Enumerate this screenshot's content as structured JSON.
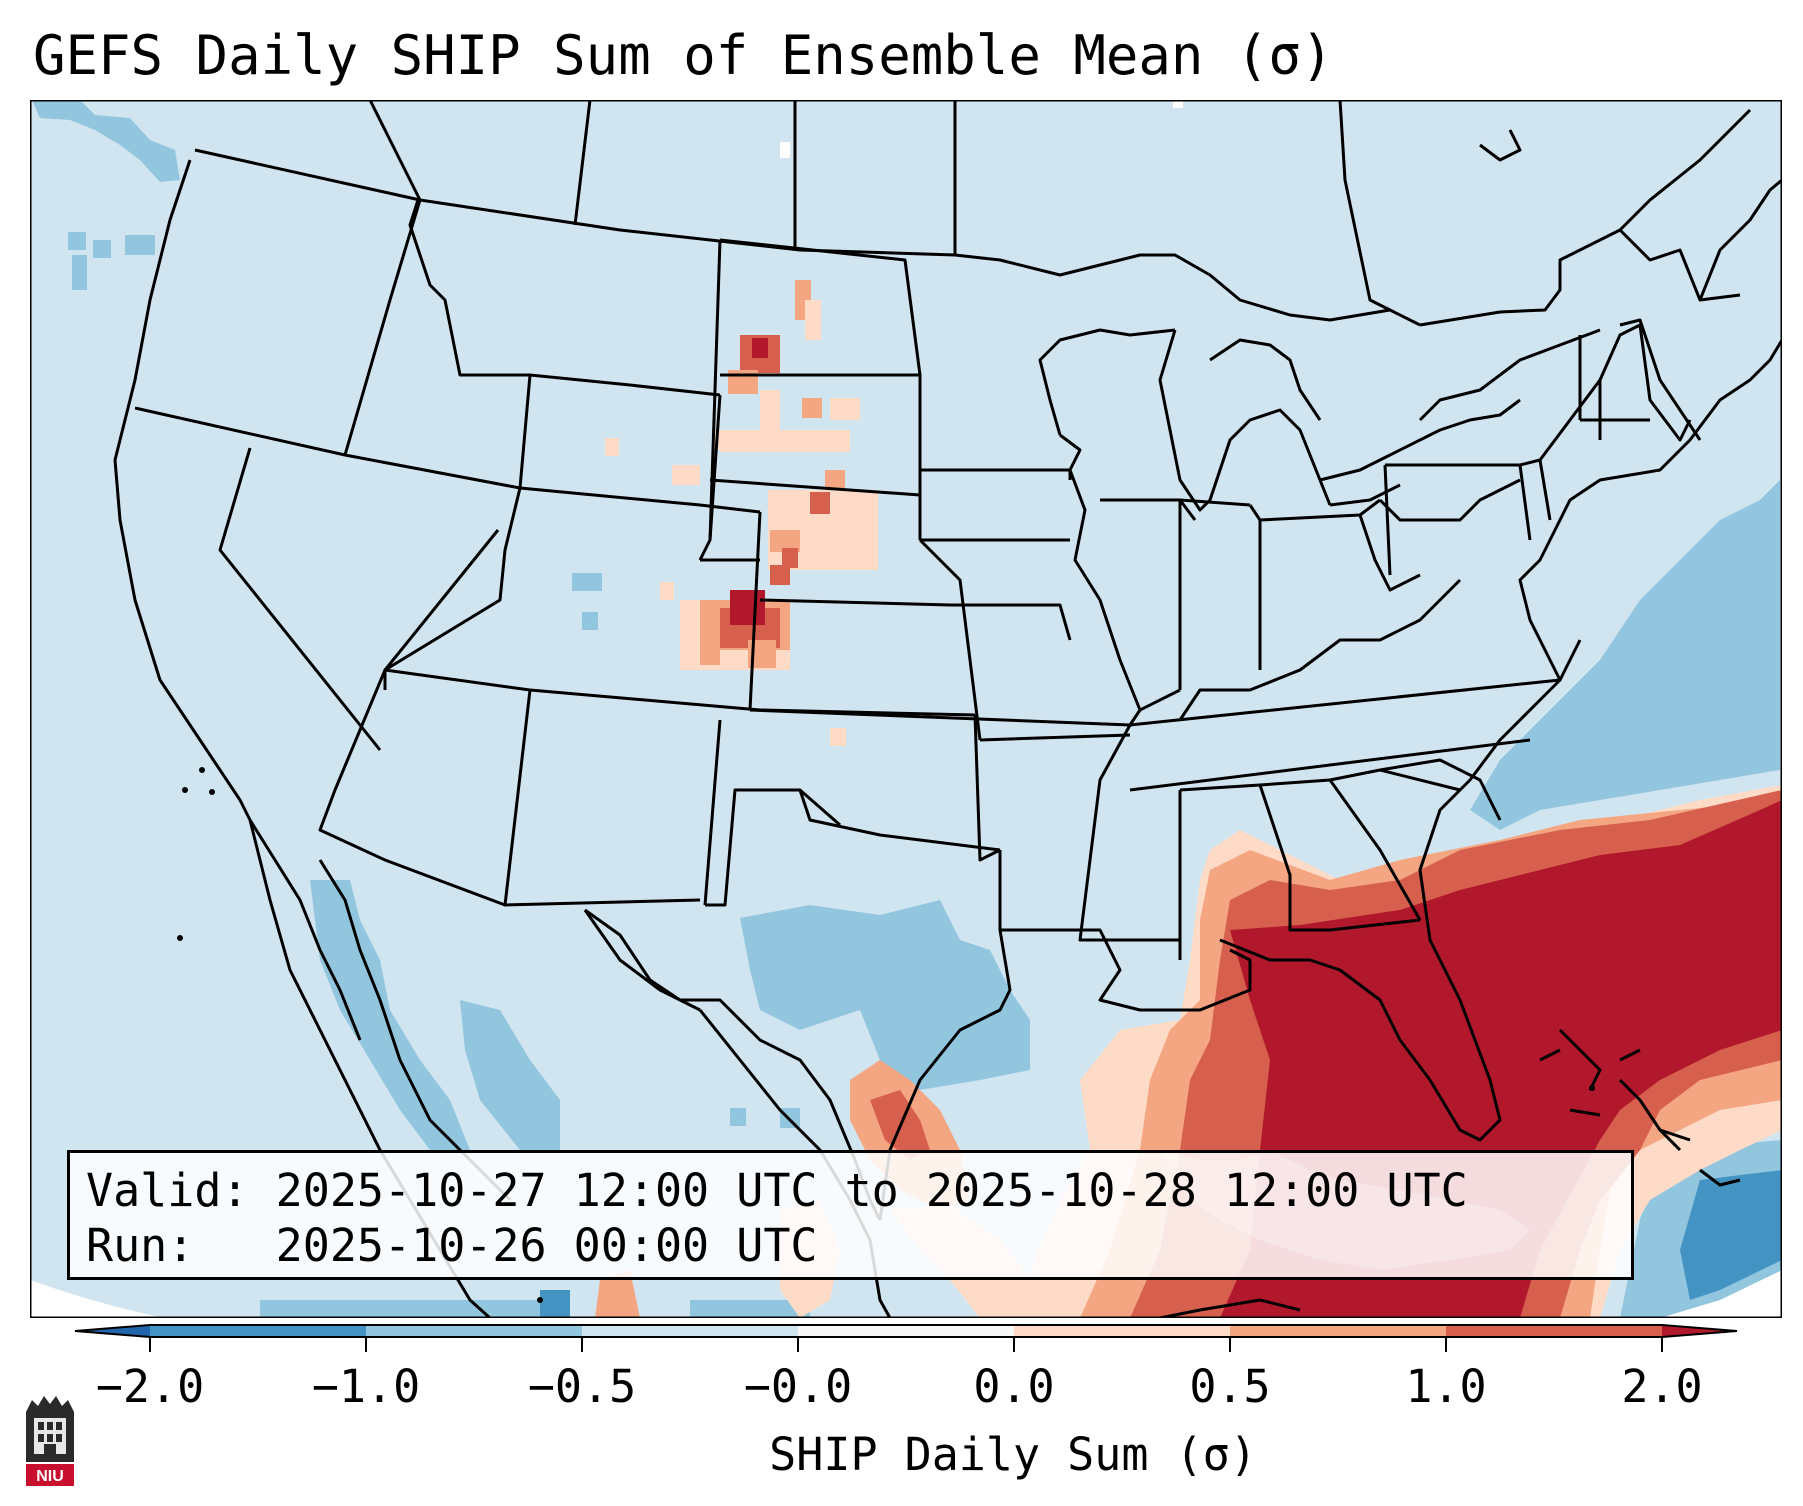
{
  "title": "GEFS Daily SHIP Sum of Ensemble Mean (σ)",
  "info": {
    "valid_label": "Valid:",
    "valid_value": "2025-10-27 12:00 UTC to 2025-10-28 12:00 UTC",
    "run_label": "Run:",
    "run_value": "2025-10-26 00:00 UTC"
  },
  "colorbar": {
    "label": "SHIP Daily Sum (σ)",
    "ticks": [
      "−2.0",
      "−1.0",
      "−0.5",
      "−0.0",
      "0.0",
      "0.5",
      "1.0",
      "2.0"
    ],
    "colors": [
      "#4393c3",
      "#92c5de",
      "#d1e5f0",
      "#f7f7f7",
      "#fddbc7",
      "#f4a582",
      "#d6604d"
    ],
    "under_color": "#2166ac",
    "over_color": "#b2182b"
  },
  "map_colors": {
    "land_background": "#d1e5f0",
    "outside": "#ffffff",
    "lines": "#000000"
  },
  "logo": {
    "text": "NIU",
    "color": "#c8102e"
  }
}
